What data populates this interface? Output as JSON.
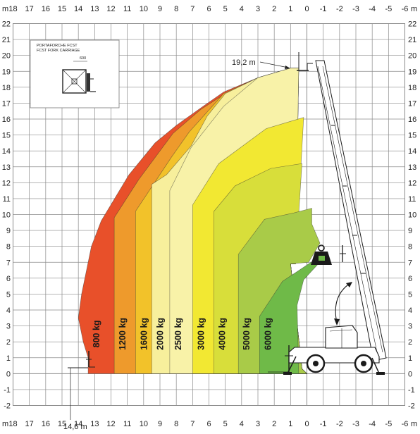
{
  "axes": {
    "unit": "m",
    "x_ticks": [
      "18",
      "17",
      "16",
      "15",
      "14",
      "13",
      "12",
      "11",
      "10",
      "9",
      "8",
      "7",
      "6",
      "5",
      "4",
      "3",
      "2",
      "1",
      "0",
      "-1",
      "-2",
      "-3",
      "-4",
      "-5",
      "-6"
    ],
    "y_ticks": [
      "22",
      "21",
      "20",
      "19",
      "18",
      "17",
      "16",
      "15",
      "14",
      "13",
      "12",
      "11",
      "10",
      "9",
      "8",
      "7",
      "6",
      "5",
      "4",
      "3",
      "2",
      "1",
      "0",
      "-1",
      "-2"
    ],
    "x_range_m": [
      18,
      -6
    ],
    "y_range_m": [
      -2,
      22
    ],
    "grid": true
  },
  "annotations": {
    "max_height": "19,2 m",
    "max_reach": "14,6 m"
  },
  "inset": {
    "line1": "PORTAFORCHE FCST",
    "line2": "FCST FORK CARRIAGE",
    "dimension": "600"
  },
  "zones": [
    {
      "label": "800 kg",
      "outer_reach_m": 13.4,
      "color": "#e8502a"
    },
    {
      "label": "1200 kg",
      "outer_reach_m": 11.8,
      "color": "#ee9a2c"
    },
    {
      "label": "1600 kg",
      "outer_reach_m": 10.5,
      "color": "#f2c22a"
    },
    {
      "label": "2000 kg",
      "outer_reach_m": 9.5,
      "color": "#f7ef9c"
    },
    {
      "label": "2500 kg",
      "outer_reach_m": 8.4,
      "color": "#f8f2a8"
    },
    {
      "label": "3000 kg",
      "outer_reach_m": 7.0,
      "color": "#f2e832"
    },
    {
      "label": "4000 kg",
      "outer_reach_m": 5.7,
      "color": "#d8de3a"
    },
    {
      "label": "5000 kg",
      "outer_reach_m": 4.2,
      "color": "#a9cb48"
    },
    {
      "label": "6000 kg",
      "outer_reach_m": 2.9,
      "color": "#6fba48"
    }
  ],
  "icons": {
    "load_weight": "weight-icon",
    "rotation": "rotation-arrow-icon",
    "machine": "telehandler-icon",
    "fork": "fork-carriage-icon"
  },
  "colors": {
    "grid": "#8a8a8a",
    "background": "#ffffff"
  }
}
